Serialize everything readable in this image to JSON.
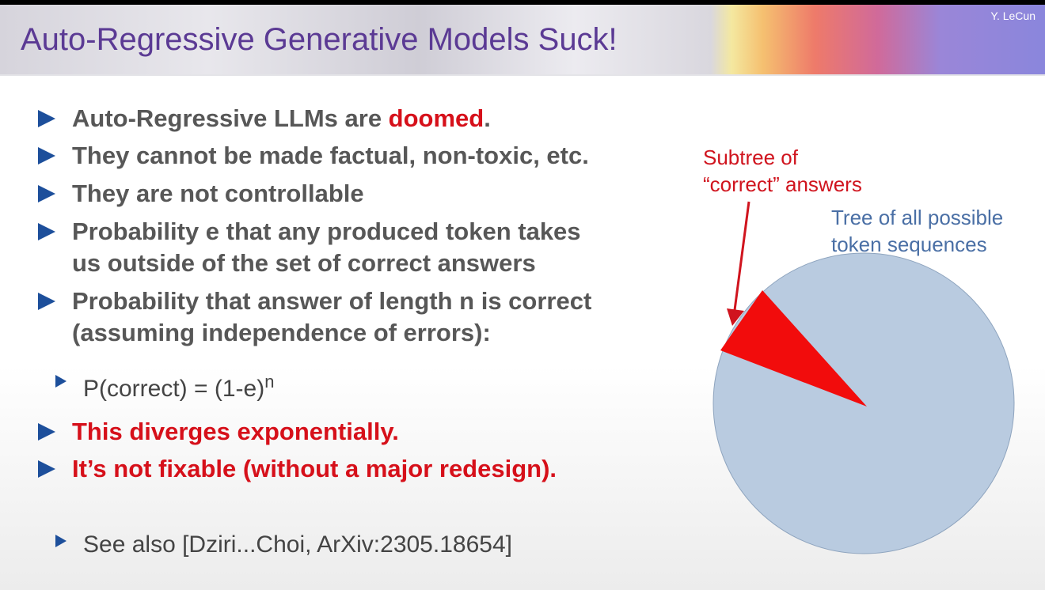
{
  "header": {
    "title": "Auto-Regressive Generative Models Suck!",
    "author": "Y. LeCun"
  },
  "bullets": [
    {
      "pre": "Auto-Regressive LLMs are ",
      "emph": "doomed",
      "post": "."
    },
    {
      "text": "They cannot be made factual, non-toxic, etc."
    },
    {
      "text": "They are not controllable"
    },
    {
      "line1": "Probability e that any produced token takes",
      "line2": "us outside of the set of correct answers"
    },
    {
      "line1": "Probability that answer of length n is correct",
      "line2": "(assuming independence of errors):"
    },
    {
      "base": "P(correct) = (1-e)",
      "exp": "n"
    },
    {
      "text": "This diverges exponentially."
    },
    {
      "text": "It’s not fixable (without a major redesign)."
    },
    {
      "text": "See also [Dziri...Choi, ArXiv:2305.18654]"
    }
  ],
  "diagram": {
    "subtree_label_1": "Subtree of",
    "subtree_label_2": "“correct” answers",
    "tree_label_1": "Tree of all possible",
    "tree_label_2": "token sequences",
    "colors": {
      "tree": "#b9cbe0",
      "subtree": "#f20c0c",
      "arrow": "#d0141e",
      "bullet": "#1d4f9b",
      "title": "#5b3a94"
    }
  }
}
